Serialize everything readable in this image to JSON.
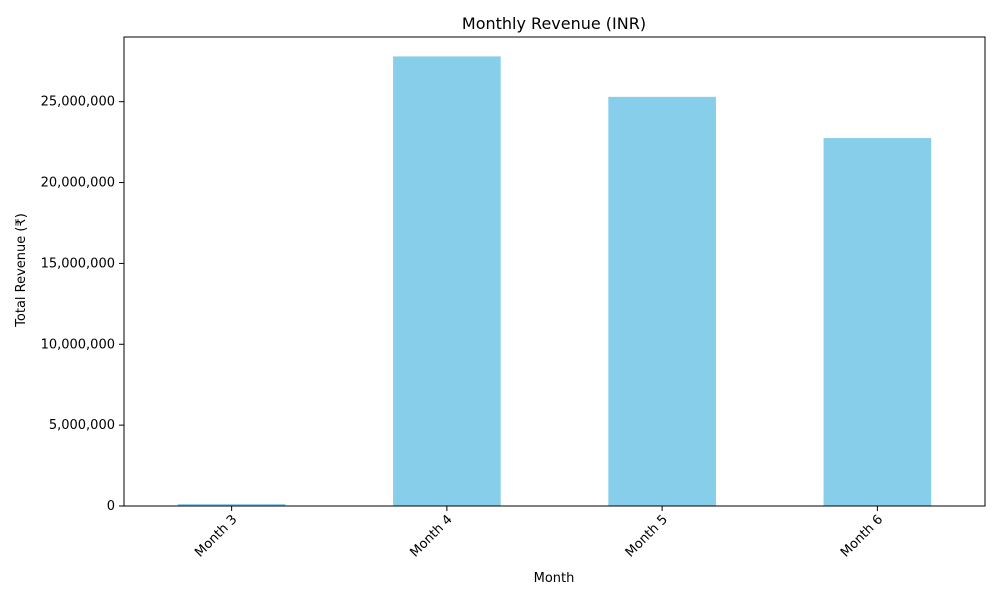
{
  "chart_data": {
    "type": "bar",
    "title": "Monthly Revenue (INR)",
    "xlabel": "Month",
    "ylabel": "Total Revenue (₹)",
    "categories": [
      "Month 3",
      "Month 4",
      "Month 5",
      "Month 6"
    ],
    "values": [
      120000,
      27800000,
      25300000,
      22750000
    ],
    "ylim": [
      0,
      29000000
    ],
    "yticks": [
      0,
      5000000,
      10000000,
      15000000,
      20000000,
      25000000
    ],
    "ytick_labels": [
      "0",
      "5,000,000",
      "10,000,000",
      "15,000,000",
      "20,000,000",
      "25,000,000"
    ],
    "bar_color": "#87CEEB",
    "grid": false,
    "xtick_rotation": "45 degrees"
  }
}
